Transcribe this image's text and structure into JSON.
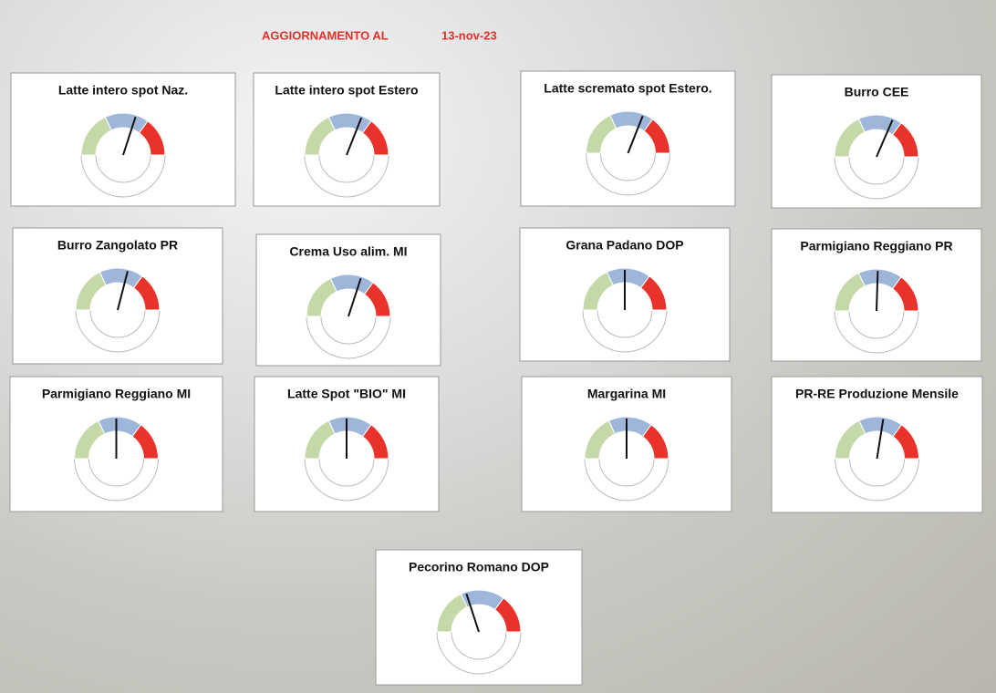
{
  "header": {
    "label": "AGGIORNAMENTO AL",
    "date": "13-nov-23"
  },
  "gauge_bands": {
    "limits": [
      0,
      36,
      70,
      100
    ],
    "colors": [
      "#c5d9a8",
      "#9fb6db",
      "#e8322a"
    ]
  },
  "chart_data": [
    {
      "type": "gauge",
      "title": "Latte intero spot Naz.",
      "value": 60
    },
    {
      "type": "gauge",
      "title": "Latte intero spot Estero",
      "value": 62
    },
    {
      "type": "gauge",
      "title": "Latte scremato spot Estero.",
      "value": 62
    },
    {
      "type": "gauge",
      "title": "Burro CEE",
      "value": 63
    },
    {
      "type": "gauge",
      "title": "Burro Zangolato PR",
      "value": 58
    },
    {
      "type": "gauge",
      "title": "Crema Uso alim. MI",
      "value": 60
    },
    {
      "type": "gauge",
      "title": "Grana Padano DOP",
      "value": 50
    },
    {
      "type": "gauge",
      "title": "Parmigiano Reggiano PR",
      "value": 51
    },
    {
      "type": "gauge",
      "title": "Parmigiano Reggiano MI",
      "value": 50
    },
    {
      "type": "gauge",
      "title": "Latte Spot \"BIO\" MI",
      "value": 50
    },
    {
      "type": "gauge",
      "title": "Margarina MI",
      "value": 50
    },
    {
      "type": "gauge",
      "title": "PR-RE Produzione Mensile",
      "value": 55
    },
    {
      "type": "gauge",
      "title": "Pecorino Romano DOP",
      "value": 40
    }
  ]
}
